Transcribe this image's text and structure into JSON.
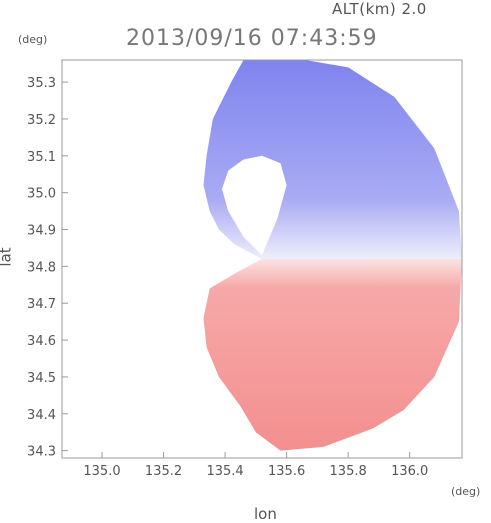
{
  "header": {
    "altitude_label": "ALT(km) 2.0",
    "timestamp": "2013/09/16 07:43:59"
  },
  "colors": {
    "approaching": "#8c8cf0",
    "receding": "#f59a9a",
    "frame": "#999999"
  },
  "chart_data": {
    "type": "heatmap",
    "title": "2013/09/16 07:43:59",
    "subtitle": "ALT(km) 2.0",
    "xlabel": "lon",
    "ylabel": "lat",
    "x_unit": "(deg)",
    "y_unit": "(deg)",
    "xlim": [
      134.87,
      136.17
    ],
    "ylim": [
      34.28,
      35.36
    ],
    "x_ticks": [
      {
        "value": 135.0,
        "label": "135.0"
      },
      {
        "value": 135.2,
        "label": "135.2"
      },
      {
        "value": 135.4,
        "label": "135.4"
      },
      {
        "value": 135.6,
        "label": "135.6"
      },
      {
        "value": 135.8,
        "label": "135.8"
      },
      {
        "value": 136.0,
        "label": "136.0"
      }
    ],
    "y_ticks": [
      {
        "value": 34.3,
        "label": "34.3"
      },
      {
        "value": 34.4,
        "label": "34.4"
      },
      {
        "value": 34.5,
        "label": "34.5"
      },
      {
        "value": 34.6,
        "label": "34.6"
      },
      {
        "value": 34.7,
        "label": "34.7"
      },
      {
        "value": 34.8,
        "label": "34.8"
      },
      {
        "value": 34.9,
        "label": "34.9"
      },
      {
        "value": 35.0,
        "label": "35.0"
      },
      {
        "value": 35.1,
        "label": "35.1"
      },
      {
        "value": 35.2,
        "label": "35.2"
      },
      {
        "value": 35.3,
        "label": "35.3"
      }
    ],
    "radar_center": {
      "lon": 135.52,
      "lat": 34.82
    },
    "regions": [
      {
        "name": "approaching",
        "color": "#8c8cf0",
        "outline": [
          [
            135.52,
            34.82
          ],
          [
            135.43,
            34.86
          ],
          [
            135.38,
            34.9
          ],
          [
            135.35,
            34.95
          ],
          [
            135.33,
            35.02
          ],
          [
            135.34,
            35.1
          ],
          [
            135.36,
            35.2
          ],
          [
            135.42,
            35.3
          ],
          [
            135.46,
            35.36
          ],
          [
            135.66,
            35.36
          ],
          [
            135.8,
            35.34
          ],
          [
            135.95,
            35.26
          ],
          [
            136.08,
            35.12
          ],
          [
            136.16,
            34.95
          ],
          [
            136.17,
            34.82
          ]
        ]
      },
      {
        "name": "receding",
        "color": "#f59a9a",
        "outline": [
          [
            135.52,
            34.82
          ],
          [
            136.17,
            34.82
          ],
          [
            136.16,
            34.65
          ],
          [
            136.08,
            34.5
          ],
          [
            135.98,
            34.41
          ],
          [
            135.88,
            34.36
          ],
          [
            135.72,
            34.31
          ],
          [
            135.58,
            34.3
          ],
          [
            135.5,
            34.35
          ],
          [
            135.45,
            34.42
          ],
          [
            135.38,
            34.5
          ],
          [
            135.34,
            34.58
          ],
          [
            135.33,
            34.66
          ],
          [
            135.35,
            34.74
          ],
          [
            135.43,
            34.78
          ]
        ]
      },
      {
        "name": "no-echo-gap",
        "color": "#ffffff",
        "outline": [
          [
            135.52,
            34.83
          ],
          [
            135.46,
            34.88
          ],
          [
            135.41,
            34.95
          ],
          [
            135.39,
            35.01
          ],
          [
            135.41,
            35.06
          ],
          [
            135.46,
            35.09
          ],
          [
            135.52,
            35.1
          ],
          [
            135.58,
            35.08
          ],
          [
            135.6,
            35.02
          ],
          [
            135.57,
            34.93
          ]
        ]
      }
    ]
  }
}
